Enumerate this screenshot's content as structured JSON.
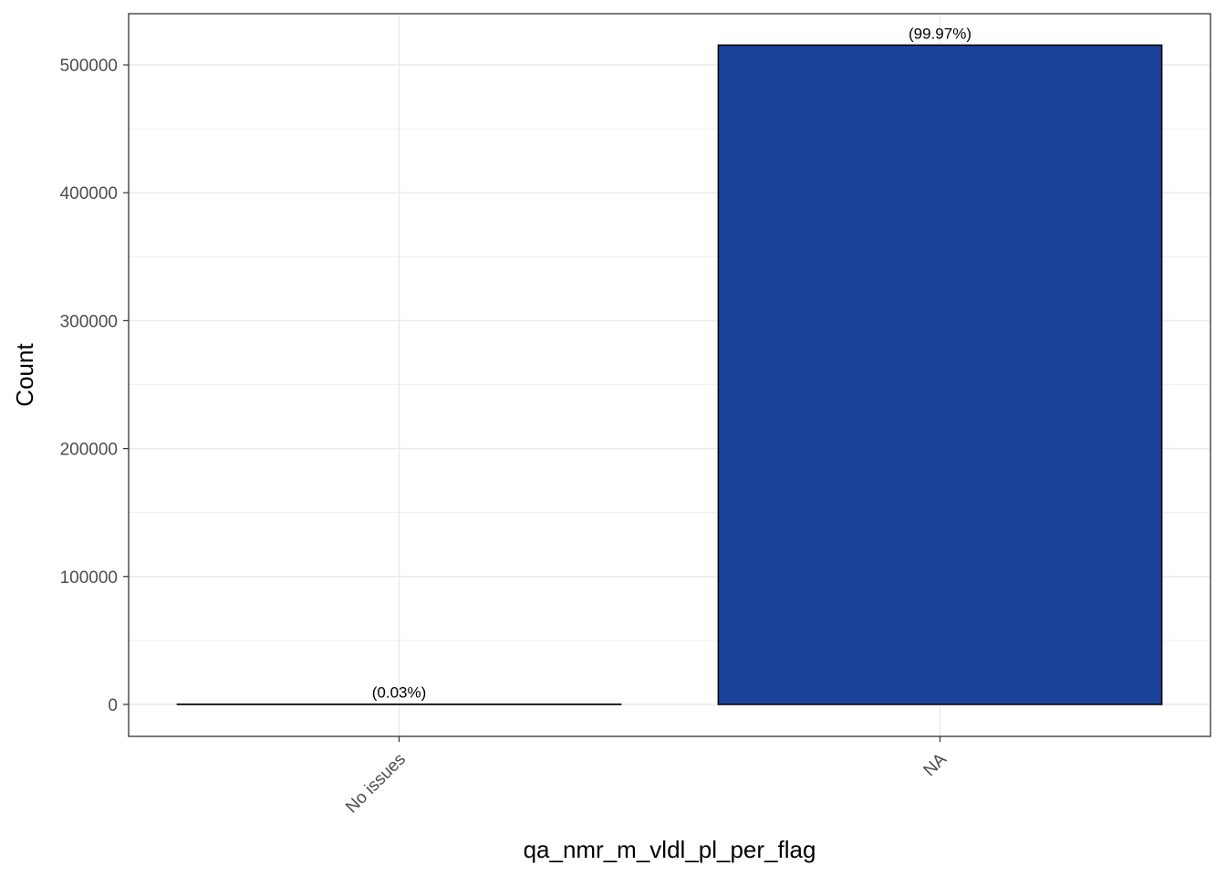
{
  "chart_data": {
    "type": "bar",
    "categories": [
      "No issues",
      "NA"
    ],
    "values": [
      155,
      515450
    ],
    "labels": [
      "(0.03%)",
      "(99.97%)"
    ],
    "title": "",
    "xlabel": "qa_nmr_m_vldl_pl_per_flag",
    "ylabel": "Count",
    "ylim": [
      -25000,
      540000
    ],
    "yticks": [
      0,
      100000,
      200000,
      300000,
      400000,
      500000
    ],
    "grid": true,
    "bar_color": "#1a4299",
    "bar_edge_color": "#000000",
    "background": "#ffffff",
    "grid_color": "#ebebeb"
  }
}
